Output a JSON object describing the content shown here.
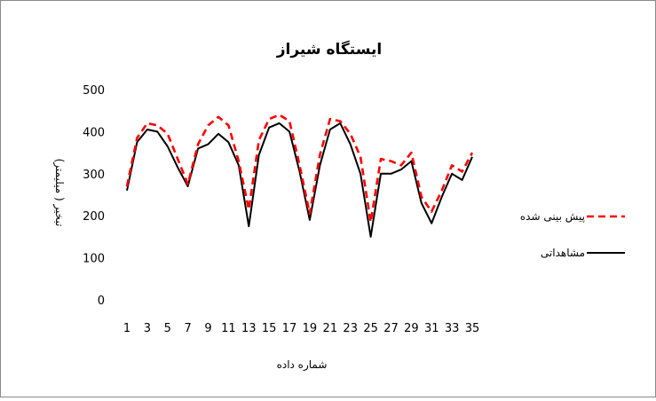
{
  "chart_data": {
    "type": "line",
    "title": "ایستگاه شیراز",
    "xlabel": "شماره داده",
    "ylabel": "تبخیر ( میلیمتر)",
    "ylim": [
      0,
      500
    ],
    "yticks": [
      0,
      100,
      200,
      300,
      400,
      500
    ],
    "xticks": [
      "1",
      "3",
      "5",
      "7",
      "9",
      "11",
      "13",
      "15",
      "17",
      "19",
      "21",
      "23",
      "25",
      "27",
      "29",
      "31",
      "33",
      "35"
    ],
    "x": [
      1,
      2,
      3,
      4,
      5,
      6,
      7,
      8,
      9,
      10,
      11,
      12,
      13,
      14,
      15,
      16,
      17,
      18,
      19,
      20,
      21,
      22,
      23,
      24,
      25,
      26,
      27,
      28,
      29,
      30,
      31,
      32,
      33,
      34,
      35
    ],
    "grid": false,
    "legend_position": "right",
    "series": [
      {
        "name": "پیش بینی شده",
        "color": "#ff0000",
        "style": "dashed",
        "values": [
          270,
          385,
          420,
          415,
          395,
          335,
          275,
          370,
          415,
          435,
          415,
          330,
          215,
          380,
          430,
          440,
          425,
          320,
          205,
          345,
          430,
          425,
          395,
          340,
          185,
          335,
          330,
          320,
          350,
          245,
          210,
          260,
          320,
          305,
          350
        ]
      },
      {
        "name": "مشاهداتی",
        "color": "#000000",
        "style": "solid",
        "values": [
          260,
          375,
          405,
          400,
          365,
          315,
          270,
          360,
          370,
          395,
          375,
          320,
          175,
          345,
          410,
          420,
          400,
          305,
          190,
          320,
          405,
          420,
          370,
          300,
          150,
          300,
          300,
          310,
          330,
          230,
          182,
          245,
          300,
          285,
          340
        ]
      }
    ]
  }
}
